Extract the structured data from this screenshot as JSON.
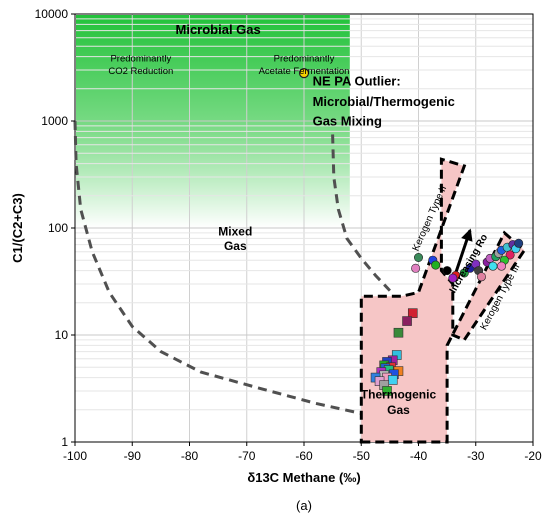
{
  "chart_data": {
    "type": "scatter",
    "xlabel": "δ13C Methane (‰)",
    "ylabel": "C1/(C2+C3)",
    "caption": "(a)",
    "xlim": [
      -100,
      -20
    ],
    "ylim": [
      1,
      10000
    ],
    "y_scale": "log",
    "x_ticks": [
      -100,
      -90,
      -80,
      -70,
      -60,
      -50,
      -40,
      -30,
      -20
    ],
    "x_tick_labels": [
      "-100",
      "-90",
      "-80",
      "-70",
      "-60",
      "-50",
      "-40",
      "-30",
      "-20"
    ],
    "y_ticks": [
      1,
      10,
      100,
      1000,
      10000
    ],
    "y_tick_labels": [
      "1",
      "10",
      "100",
      "1000",
      "10000"
    ],
    "grid": true,
    "colors": {
      "microbial_gradient_top": "#22c23a",
      "microbial_gradient_bottom": "#ffffff",
      "thermogenic_fill": "#f6c6c6",
      "thermogenic_stroke": "#000000",
      "boundary_dash": "#505050",
      "outlier_fill": "#f5d000",
      "outlier_text": "#e00000",
      "arrow": "#000000"
    },
    "annotations": {
      "microbial_gas": "Microbial Gas",
      "co2_reduction": [
        "Predominantly",
        "CO2 Reduction"
      ],
      "acetate_fermentation": [
        "Predominantly",
        "Acetate Fermentation"
      ],
      "outlier": [
        "NE PA Outlier:",
        "Microbial/Thermogenic",
        "Gas Mixing"
      ],
      "mixed_gas": [
        "Mixed",
        "Gas"
      ],
      "thermogenic_gas": [
        "Thermogenic",
        "Gas"
      ],
      "kerogen_type_ii": "Kerogen Type II",
      "kerogen_type_iii": "Kerogen Type III",
      "increasing_ro": "Increasing Ro"
    },
    "series": [
      {
        "marker": "square",
        "points": [
          {
            "x": -41,
            "y": 16,
            "color": "#d02030"
          },
          {
            "x": -42,
            "y": 13.5,
            "color": "#8a2060"
          },
          {
            "x": -43.5,
            "y": 10.5,
            "color": "#3a8a3a"
          },
          {
            "x": -43.8,
            "y": 6.5,
            "color": "#30c0e0"
          },
          {
            "x": -44.5,
            "y": 5.8,
            "color": "#a020a0"
          },
          {
            "x": -45.5,
            "y": 5.6,
            "color": "#2040c0"
          },
          {
            "x": -46,
            "y": 5.2,
            "color": "#20b020"
          },
          {
            "x": -44.8,
            "y": 5.0,
            "color": "#e03030"
          },
          {
            "x": -45.8,
            "y": 4.9,
            "color": "#2060d0"
          },
          {
            "x": -45.2,
            "y": 4.7,
            "color": "#20c080"
          },
          {
            "x": -43.5,
            "y": 4.6,
            "color": "#f08020"
          },
          {
            "x": -46.5,
            "y": 4.5,
            "color": "#b030c0"
          },
          {
            "x": -44.3,
            "y": 4.3,
            "color": "#2050e0"
          },
          {
            "x": -46,
            "y": 4.2,
            "color": "#c0c0c0"
          },
          {
            "x": -47.5,
            "y": 4.0,
            "color": "#3080e0"
          },
          {
            "x": -45.5,
            "y": 4.0,
            "color": "#f0a0c0"
          },
          {
            "x": -44.5,
            "y": 3.8,
            "color": "#40d0f0"
          },
          {
            "x": -46.8,
            "y": 3.7,
            "color": "#e0a0d0"
          },
          {
            "x": -46,
            "y": 3.4,
            "color": "#a0a0a0"
          },
          {
            "x": -45.5,
            "y": 3.0,
            "color": "#30b030"
          }
        ]
      },
      {
        "marker": "circle",
        "points": [
          {
            "x": -40,
            "y": 53,
            "color": "#3a8a5a"
          },
          {
            "x": -40.5,
            "y": 42,
            "color": "#e080c0"
          },
          {
            "x": -37.5,
            "y": 50,
            "color": "#2040e0"
          },
          {
            "x": -37,
            "y": 45,
            "color": "#20b020"
          },
          {
            "x": -35,
            "y": 40,
            "color": "#000000"
          },
          {
            "x": -33.5,
            "y": 36,
            "color": "#e02020"
          },
          {
            "x": -34,
            "y": 34,
            "color": "#a020c0"
          },
          {
            "x": -32,
            "y": 38,
            "color": "#20a040"
          },
          {
            "x": -31,
            "y": 42,
            "color": "#2020a0"
          },
          {
            "x": -30,
            "y": 46,
            "color": "#8030c0"
          },
          {
            "x": -29.5,
            "y": 40,
            "color": "#404040"
          },
          {
            "x": -29,
            "y": 35,
            "color": "#e080a0"
          },
          {
            "x": -28,
            "y": 48,
            "color": "#8a20a0"
          },
          {
            "x": -27.5,
            "y": 52,
            "color": "#c060c0"
          },
          {
            "x": -26.5,
            "y": 54,
            "color": "#20a060"
          },
          {
            "x": -26,
            "y": 58,
            "color": "#a0a0a0"
          },
          {
            "x": -25.5,
            "y": 62,
            "color": "#2060e0"
          },
          {
            "x": -24.5,
            "y": 66,
            "color": "#40c0d0"
          },
          {
            "x": -24,
            "y": 56,
            "color": "#e02060"
          },
          {
            "x": -25,
            "y": 50,
            "color": "#30c030"
          },
          {
            "x": -23.5,
            "y": 70,
            "color": "#6030a0"
          },
          {
            "x": -23,
            "y": 64,
            "color": "#40d0f0"
          },
          {
            "x": -25.5,
            "y": 44,
            "color": "#f080c0"
          },
          {
            "x": -22.5,
            "y": 72,
            "color": "#204080"
          },
          {
            "x": -27,
            "y": 44,
            "color": "#40e0f0"
          }
        ]
      },
      {
        "name": "NE PA Outlier",
        "marker": "circle",
        "points": [
          {
            "x": -60,
            "y": 2800,
            "color": "#f5d000"
          }
        ]
      }
    ]
  }
}
